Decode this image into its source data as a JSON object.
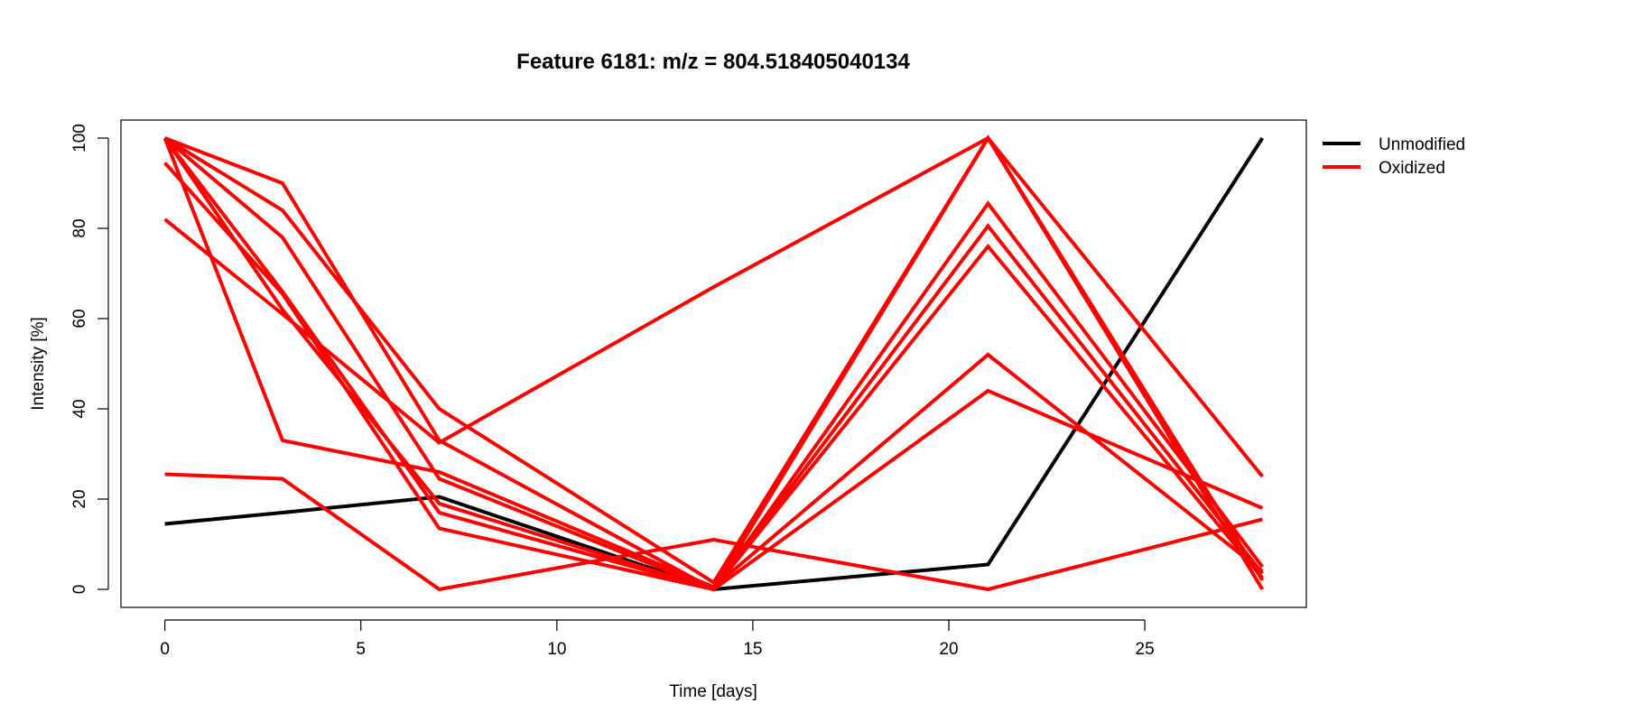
{
  "chart_data": {
    "type": "line",
    "title": "Feature 6181: m/z = 804.518405040134",
    "xlabel": "Time [days]",
    "ylabel": "Intensity [%]",
    "x": [
      0,
      3,
      7,
      14,
      21,
      28
    ],
    "xlim": [
      -1.12,
      29.12
    ],
    "ylim": [
      -4,
      104
    ],
    "xticks": [
      0,
      5,
      10,
      15,
      20,
      25
    ],
    "yticks": [
      0,
      20,
      40,
      60,
      80,
      100
    ],
    "grid": false,
    "legend_position": "right",
    "legend": [
      {
        "name": "Unmodified",
        "color": "#000000"
      },
      {
        "name": "Oxidized",
        "color": "#ff0000"
      }
    ],
    "series": [
      {
        "group": "Unmodified",
        "color": "#000000",
        "values": [
          14.5,
          17.0,
          20.5,
          0.0,
          5.5,
          100.0
        ]
      },
      {
        "group": "Oxidized",
        "color": "#ff0000",
        "values": [
          100.0,
          90.0,
          33.0,
          0.0,
          100.0,
          2.0
        ]
      },
      {
        "group": "Oxidized",
        "color": "#ff0000",
        "values": [
          100.0,
          84.0,
          40.0,
          1.5,
          100.0,
          25.0
        ]
      },
      {
        "group": "Oxidized",
        "color": "#ff0000",
        "values": [
          100.0,
          78.0,
          24.5,
          0.0,
          85.5,
          5.0
        ]
      },
      {
        "group": "Oxidized",
        "color": "#ff0000",
        "values": [
          100.0,
          62.0,
          19.0,
          0.0,
          80.5,
          3.5
        ]
      },
      {
        "group": "Oxidized",
        "color": "#ff0000",
        "values": [
          100.0,
          66.0,
          17.0,
          0.0,
          76.0,
          2.5
        ]
      },
      {
        "group": "Oxidized",
        "color": "#ff0000",
        "values": [
          100.0,
          33.0,
          26.0,
          0.5,
          52.0,
          4.0
        ]
      },
      {
        "group": "Oxidized",
        "color": "#ff0000",
        "values": [
          94.5,
          65.5,
          13.5,
          0.0,
          44.0,
          18.0
        ]
      },
      {
        "group": "Oxidized",
        "color": "#ff0000",
        "values": [
          82.0,
          61.0,
          32.5,
          67.0,
          100.0,
          0.0
        ]
      },
      {
        "group": "Oxidized",
        "color": "#ff0000",
        "values": [
          25.5,
          24.5,
          0.0,
          11.0,
          0.0,
          15.5
        ]
      }
    ]
  }
}
